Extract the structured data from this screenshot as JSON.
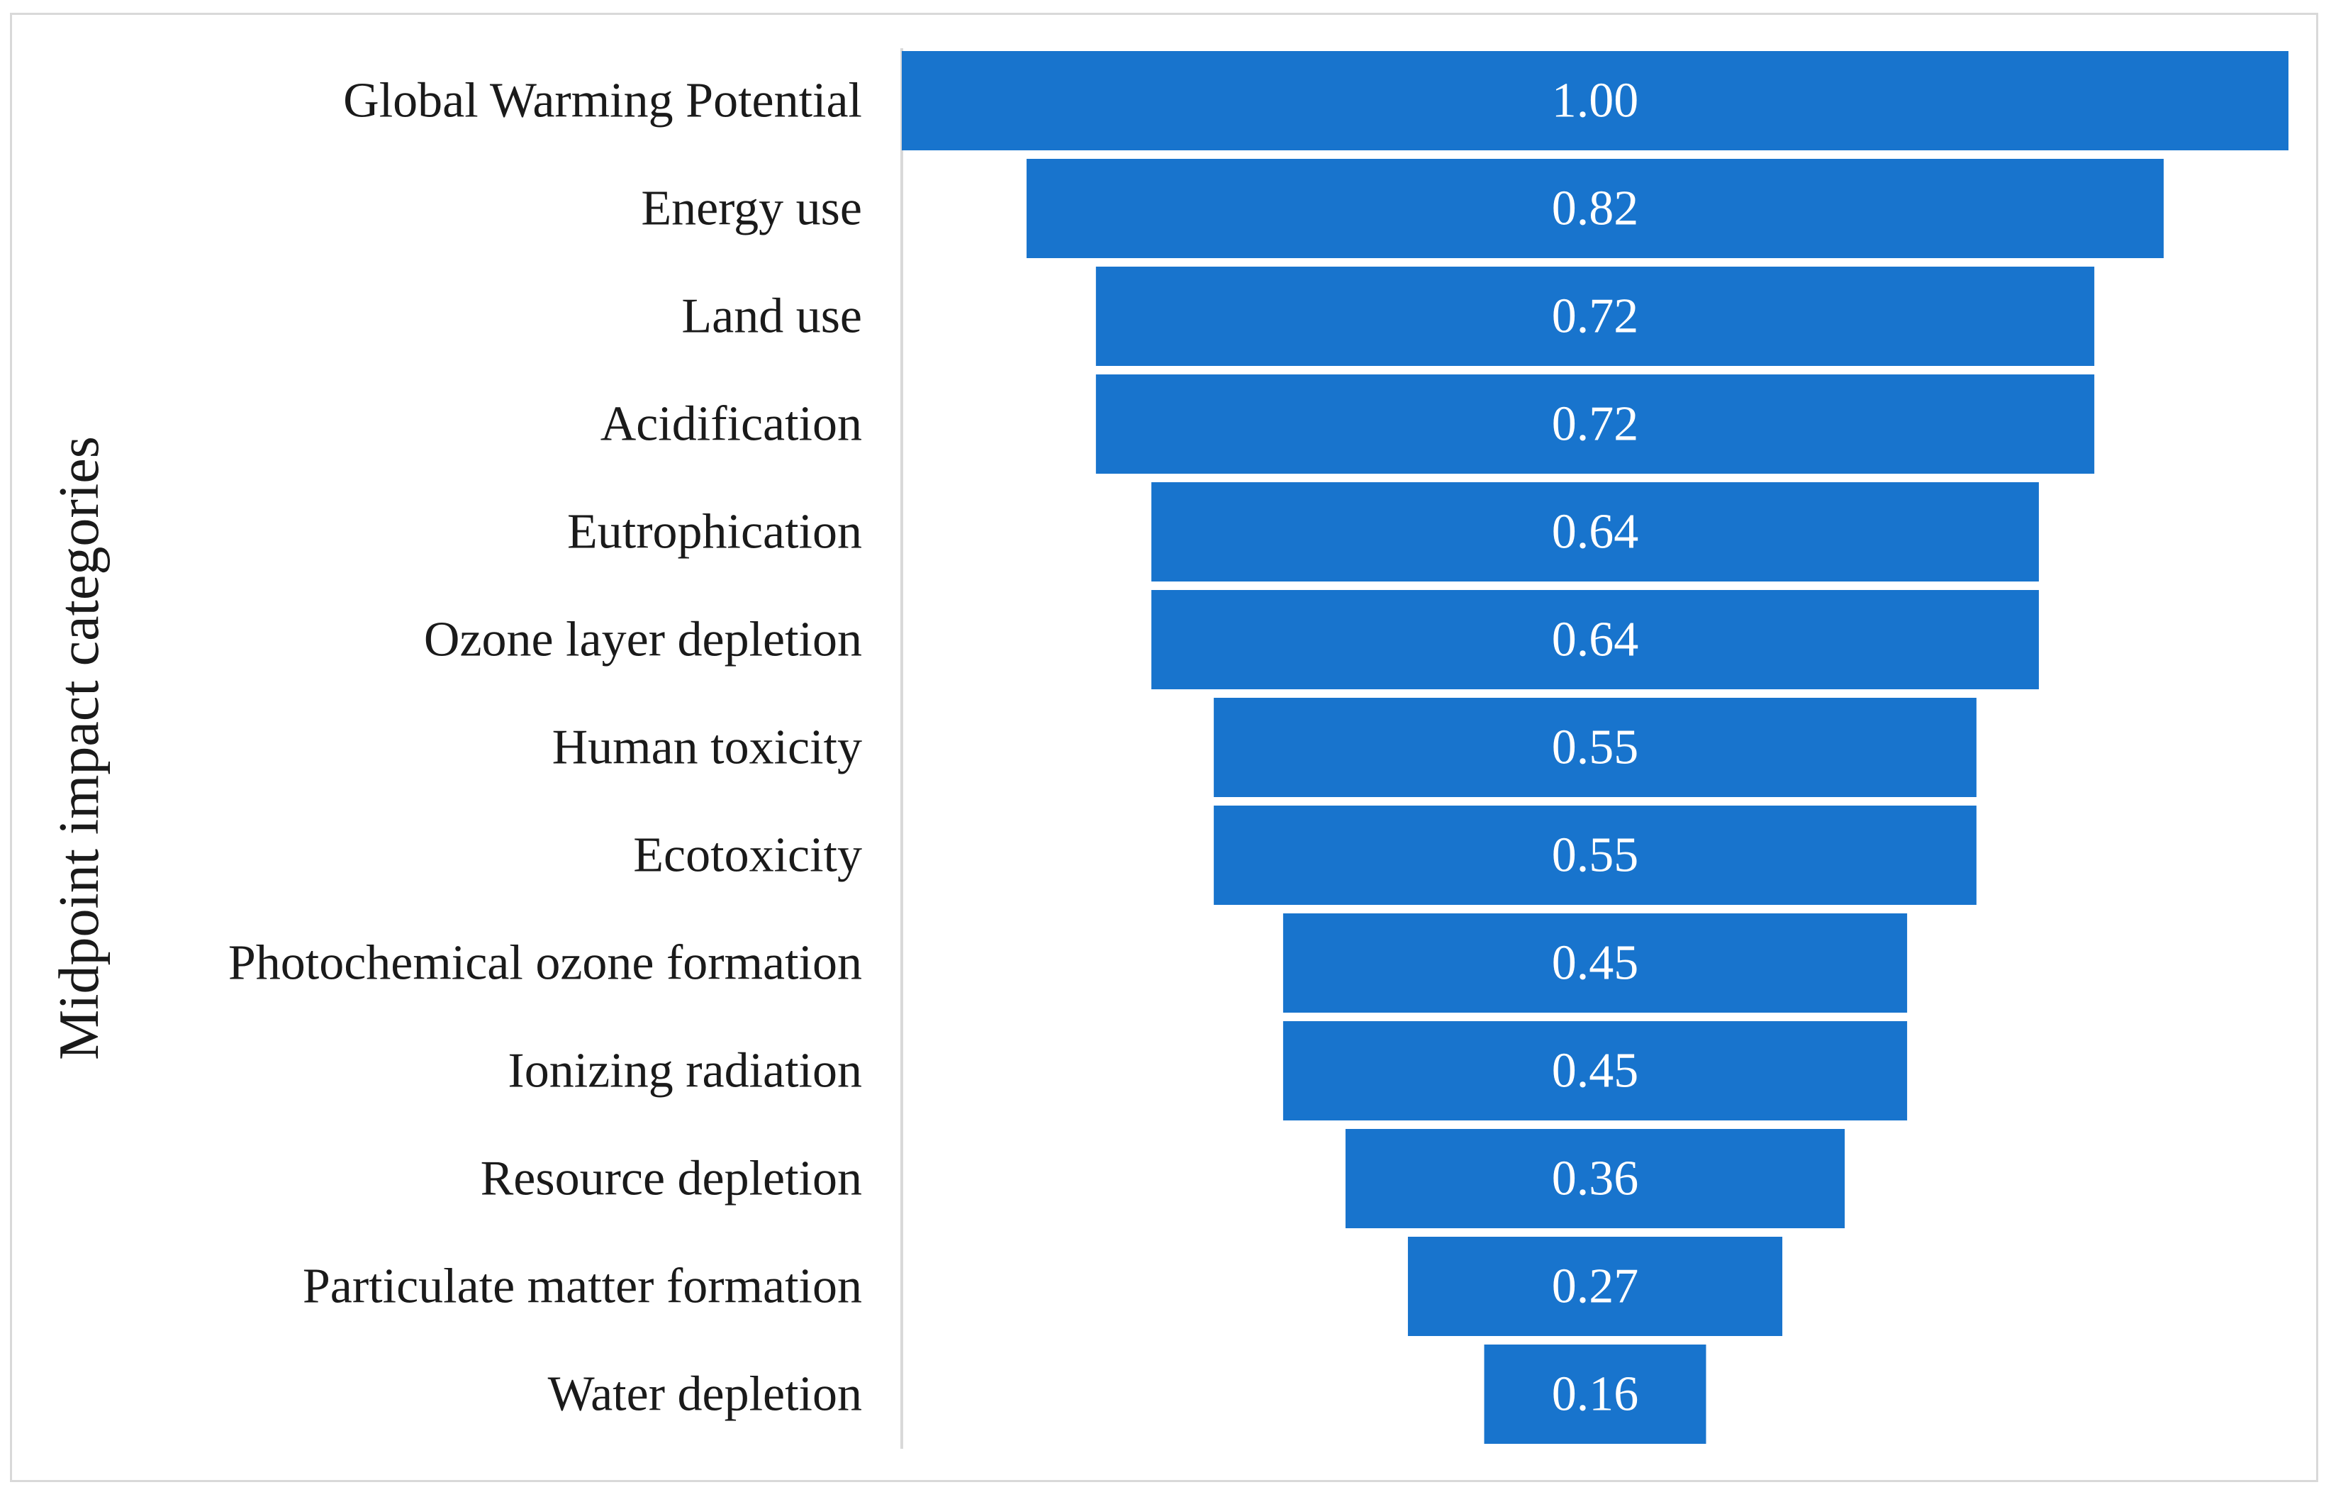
{
  "chart_data": {
    "type": "bar",
    "orientation": "horizontal-centered",
    "title": "",
    "ylabel": "Midpoint impact categories",
    "xlabel": "",
    "xlim": [
      0,
      1
    ],
    "grid": false,
    "bar_color": "#1874cd",
    "categories": [
      "Global Warming Potential",
      "Energy use",
      "Land use",
      "Acidification",
      "Eutrophication",
      "Ozone layer depletion",
      "Human toxicity",
      "Ecotoxicity",
      "Photochemical ozone formation",
      "Ionizing radiation",
      "Resource depletion",
      "Particulate matter formation",
      "Water depletion"
    ],
    "values": [
      1.0,
      0.82,
      0.72,
      0.72,
      0.64,
      0.64,
      0.55,
      0.55,
      0.45,
      0.45,
      0.36,
      0.27,
      0.16
    ],
    "value_labels": [
      "1.00",
      "0.82",
      "0.72",
      "0.72",
      "0.64",
      "0.64",
      "0.55",
      "0.55",
      "0.45",
      "0.45",
      "0.36",
      "0.27",
      "0.16"
    ]
  }
}
